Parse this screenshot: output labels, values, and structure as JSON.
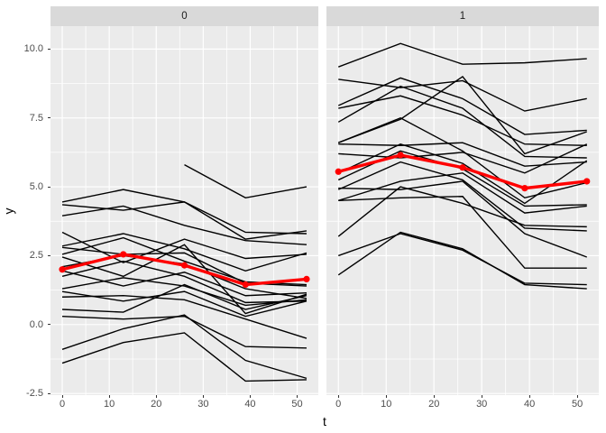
{
  "chart_data": {
    "type": "line",
    "title": "",
    "xlabel": "t",
    "ylabel": "y",
    "legend": "none",
    "grid": true,
    "facet_labels": [
      "0",
      "1"
    ],
    "measurement_times": [
      0,
      13,
      26,
      39,
      52
    ],
    "x_ticks": [
      0,
      10,
      20,
      30,
      40,
      50
    ],
    "x_tick_labels": [
      "0",
      "10",
      "20",
      "30",
      "40",
      "50"
    ],
    "y_ticks": [
      10.0,
      7.5,
      5.0,
      2.5,
      0.0,
      -2.5
    ],
    "y_tick_labels": [
      "10.0",
      "7.5",
      "5.0",
      "2.5",
      "0.0",
      "-2.5"
    ],
    "x_minor_ticks": [
      5,
      15,
      25,
      35,
      45
    ],
    "y_minor_ticks": [
      -1.25,
      1.25,
      3.75,
      6.25,
      8.75
    ],
    "xlim": [
      -2.5,
      54.5
    ],
    "ylim": [
      -2.56,
      10.83
    ],
    "colors": {
      "subject_line": "#000000",
      "mean_line": "#FF0000",
      "panel_bg": "#EBEBEB",
      "strip_bg": "#D9D9D9",
      "grid": "#FFFFFF",
      "tick_text": "#4D4D4D"
    },
    "panels": [
      {
        "label": "0",
        "mean_series": {
          "name": "group-mean",
          "values": [
            2.0,
            2.55,
            2.15,
            1.45,
            1.65
          ]
        },
        "subject_series": [
          {
            "values": [
              4.45,
              4.9,
              4.45,
              3.1,
              3.4
            ]
          },
          {
            "values": [
              4.35,
              4.15,
              4.45,
              3.35,
              3.3
            ]
          },
          {
            "values": [
              3.95,
              4.3,
              3.6,
              3.05,
              2.9
            ]
          },
          {
            "values": [
              3.35,
              2.25,
              3.1,
              2.4,
              2.55
            ]
          },
          {
            "values": [
              2.85,
              3.3,
              2.75,
              1.95,
              2.6
            ]
          },
          {
            "values": [
              2.8,
              2.55,
              2.6,
              1.5,
              1.4
            ]
          },
          {
            "values": [
              2.55,
              3.15,
              2.3,
              1.55,
              1.45
            ]
          },
          {
            "values": [
              2.45,
              1.75,
              2.9,
              0.4,
              1.1
            ]
          },
          {
            "values": [
              2.1,
              2.5,
              2.2,
              1.3,
              0.95
            ]
          },
          {
            "values": [
              1.95,
              1.4,
              1.9,
              1.05,
              1.15
            ]
          },
          {
            "values": [
              1.75,
              2.3,
              1.75,
              0.8,
              0.85
            ]
          },
          {
            "values": [
              1.3,
              1.7,
              1.4,
              0.7,
              0.9
            ]
          },
          {
            "values": [
              1.2,
              0.85,
              1.2,
              0.3,
              0.85
            ]
          },
          {
            "values": [
              1.0,
              1.05,
              0.9,
              0.2,
              -0.5
            ]
          },
          {
            "values": [
              0.55,
              0.45,
              1.45,
              0.55,
              1.05
            ]
          },
          {
            "values": [
              0.3,
              0.2,
              0.3,
              -0.8,
              -0.85
            ]
          },
          {
            "values": [
              -0.9,
              -0.15,
              0.35,
              -1.3,
              -1.95
            ]
          },
          {
            "values": [
              -1.4,
              -0.65,
              -0.3,
              -2.05,
              -2.0
            ]
          },
          {
            "x": [
              26,
              39,
              52
            ],
            "values": [
              5.8,
              4.6,
              5.0
            ]
          }
        ]
      },
      {
        "label": "1",
        "mean_series": {
          "name": "group-mean",
          "values": [
            5.55,
            6.15,
            5.7,
            4.95,
            5.2
          ]
        },
        "subject_series": [
          {
            "values": [
              9.35,
              10.2,
              9.45,
              9.5,
              9.65
            ]
          },
          {
            "values": [
              8.9,
              8.6,
              8.85,
              7.75,
              8.2
            ]
          },
          {
            "values": [
              7.95,
              8.95,
              8.2,
              6.9,
              7.05
            ]
          },
          {
            "values": [
              7.85,
              8.3,
              7.6,
              6.55,
              6.5
            ]
          },
          {
            "values": [
              7.35,
              8.65,
              7.85,
              6.1,
              6.05
            ]
          },
          {
            "values": [
              6.6,
              7.45,
              9.0,
              6.2,
              7.0
            ]
          },
          {
            "values": [
              6.55,
              6.5,
              6.6,
              5.75,
              5.9
            ]
          },
          {
            "values": [
              6.2,
              6.05,
              6.25,
              5.5,
              6.55
            ]
          },
          {
            "values": [
              6.6,
              7.5,
              6.3,
              4.6,
              5.15
            ]
          },
          {
            "values": [
              5.5,
              6.55,
              5.85,
              4.4,
              5.95
            ]
          },
          {
            "values": [
              5.25,
              6.3,
              5.65,
              4.3,
              4.35
            ]
          },
          {
            "values": [
              4.95,
              4.9,
              5.2,
              3.3,
              2.45
            ]
          },
          {
            "values": [
              4.5,
              5.2,
              5.5,
              4.05,
              4.3
            ]
          },
          {
            "values": [
              4.9,
              5.9,
              5.25,
              3.5,
              3.4
            ]
          },
          {
            "values": [
              3.2,
              5.0,
              4.4,
              3.6,
              3.55
            ]
          },
          {
            "values": [
              4.5,
              4.6,
              4.65,
              2.05,
              2.05
            ]
          },
          {
            "values": [
              2.5,
              3.3,
              2.7,
              1.5,
              1.45
            ]
          },
          {
            "values": [
              1.8,
              3.35,
              2.75,
              1.45,
              1.3
            ]
          }
        ]
      }
    ]
  }
}
